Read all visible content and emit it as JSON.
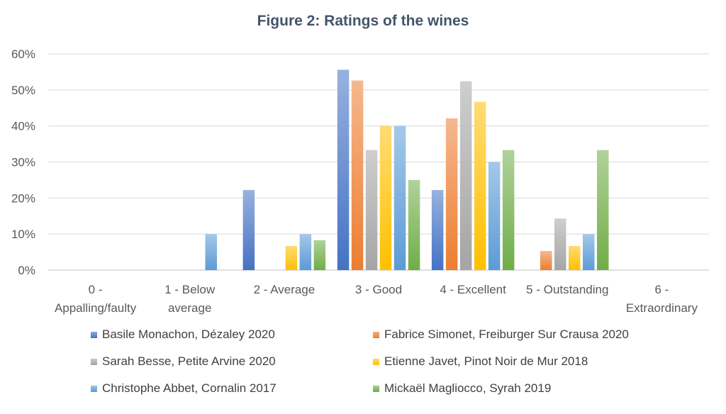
{
  "chart_data": {
    "type": "bar",
    "title": "Figure 2: Ratings of the wines",
    "xlabel": "",
    "ylabel": "",
    "ylim": [
      0,
      60
    ],
    "yticks": [
      "0%",
      "10%",
      "20%",
      "30%",
      "40%",
      "50%",
      "60%"
    ],
    "ytick_values": [
      0,
      10,
      20,
      30,
      40,
      50,
      60
    ],
    "categories": [
      [
        "0 -",
        "Appalling/faulty"
      ],
      [
        "1 - Below",
        "average"
      ],
      [
        "2 - Average"
      ],
      [
        "3 - Good"
      ],
      [
        "4 - Excellent"
      ],
      [
        "5 - Outstanding"
      ],
      [
        "6 -",
        "Extraordinary"
      ]
    ],
    "grid": true,
    "legend_position": "bottom",
    "series": [
      {
        "name": "Basile Monachon, Dézaley 2020",
        "color": "#4472c4",
        "values": [
          0,
          0,
          22.2,
          55.6,
          22.2,
          0,
          0
        ]
      },
      {
        "name": "Fabrice Simonet, Freiburger Sur Crausa 2020",
        "color": "#ed7d31",
        "values": [
          0,
          0,
          0,
          52.6,
          42.1,
          5.3,
          0
        ]
      },
      {
        "name": "Sarah Besse, Petite Arvine 2020",
        "color": "#a5a5a5",
        "values": [
          0,
          0,
          0,
          33.3,
          52.4,
          14.3,
          0
        ]
      },
      {
        "name": "Etienne Javet, Pinot Noir de Mur 2018",
        "color": "#ffc000",
        "values": [
          0,
          0,
          6.7,
          40,
          46.7,
          6.7,
          0
        ]
      },
      {
        "name": "Christophe Abbet, Cornalin 2017",
        "color": "#5b9bd5",
        "values": [
          0,
          10,
          10,
          40,
          30,
          10,
          0
        ]
      },
      {
        "name": "Mickaël Magliocco, Syrah 2019",
        "color": "#70ad47",
        "values": [
          0,
          0,
          8.3,
          25,
          33.3,
          33.3,
          0
        ]
      }
    ]
  }
}
